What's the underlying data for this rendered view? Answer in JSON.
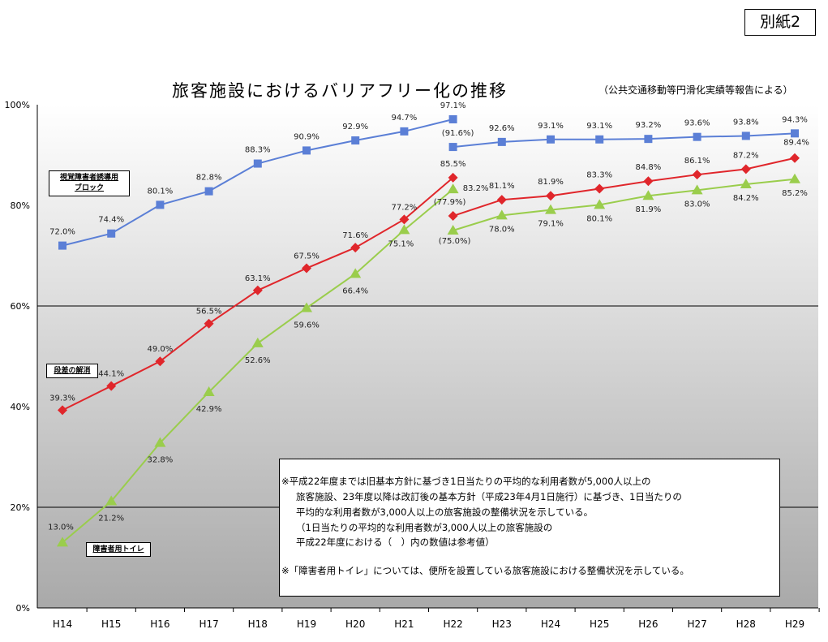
{
  "badge": "別紙2",
  "title": "旅客施設におけるバリアフリー化の推移",
  "source": "（公共交通移動等円滑化実績等報告による）",
  "notes": [
    "※平成22年度までは旧基本方針に基づき1日当たりの平均的な利用者数が5,000人以上の",
    "旅客施設、23年度以降は改訂後の基本方針（平成23年4月1日施行）に基づき、1日当たりの",
    "平均的な利用者数が3,000人以上の旅客施設の整備状況を示している。",
    "（1日当たりの平均的な利用者数が3,000人以上の旅客施設の",
    "平成22年度における（　）内の数値は参考値）",
    "※「障害者用トイレ」については、便所を設置している旅客施設における整備状況を示している。"
  ],
  "chart_data": {
    "type": "line",
    "title": "旅客施設におけるバリアフリー化の推移",
    "categories": [
      "H14",
      "H15",
      "H16",
      "H17",
      "H18",
      "H19",
      "H20",
      "H21",
      "H22",
      "H23",
      "H24",
      "H25",
      "H26",
      "H27",
      "H28",
      "H29"
    ],
    "yticks": [
      "0%",
      "20%",
      "40%",
      "60%",
      "80%",
      "100%"
    ],
    "ylim": [
      0,
      100
    ],
    "grid": "horizontal at 20% and 60%",
    "series": [
      {
        "name": "視覚障害者誘導用ブロック",
        "label_lines": [
          "視覚障害者誘導用",
          "ブロック"
        ],
        "color": "#5b7fd6",
        "marker": "square",
        "old": [
          72.0,
          74.4,
          80.1,
          82.8,
          88.3,
          90.9,
          92.9,
          94.7,
          97.1
        ],
        "old_labels": [
          "72.0%",
          "74.4%",
          "80.1%",
          "82.8%",
          "88.3%",
          "90.9%",
          "92.9%",
          "94.7%",
          "97.1%"
        ],
        "new": [
          91.6,
          92.6,
          93.1,
          93.1,
          93.2,
          93.6,
          93.8,
          94.3
        ],
        "new_labels": [
          "(91.6%)",
          "92.6%",
          "93.1%",
          "93.1%",
          "93.2%",
          "93.6%",
          "93.8%",
          "94.3%"
        ]
      },
      {
        "name": "段差の解消",
        "label_lines": [
          "段差の解消"
        ],
        "color": "#e0262b",
        "marker": "diamond",
        "old": [
          39.3,
          44.1,
          49.0,
          56.5,
          63.1,
          67.5,
          71.6,
          77.2,
          85.5
        ],
        "old_labels": [
          "39.3%",
          "44.1%",
          "49.0%",
          "56.5%",
          "63.1%",
          "67.5%",
          "71.6%",
          "77.2%",
          "85.5%"
        ],
        "new": [
          77.9,
          81.1,
          81.9,
          83.3,
          84.8,
          86.1,
          87.2,
          89.4
        ],
        "new_labels": [
          "(77.9%)",
          "81.1%",
          "81.9%",
          "83.3%",
          "84.8%",
          "86.1%",
          "87.2%",
          "89.4%"
        ]
      },
      {
        "name": "障害者用トイレ",
        "label_lines": [
          "障害者用トイレ"
        ],
        "color": "#9acd4c",
        "marker": "triangle",
        "old": [
          13.0,
          21.2,
          32.8,
          42.9,
          52.6,
          59.6,
          66.4,
          75.1,
          83.2
        ],
        "old_labels": [
          "13.0%",
          "21.2%",
          "32.8%",
          "42.9%",
          "52.6%",
          "59.6%",
          "66.4%",
          "75.1%",
          "83.2%"
        ],
        "new": [
          75.0,
          78.0,
          79.1,
          80.1,
          81.9,
          83.0,
          84.2,
          85.2
        ],
        "new_labels": [
          "(75.0%)",
          "78.0%",
          "79.1%",
          "80.1%",
          "81.9%",
          "83.0%",
          "84.2%",
          "85.2%"
        ]
      }
    ]
  }
}
